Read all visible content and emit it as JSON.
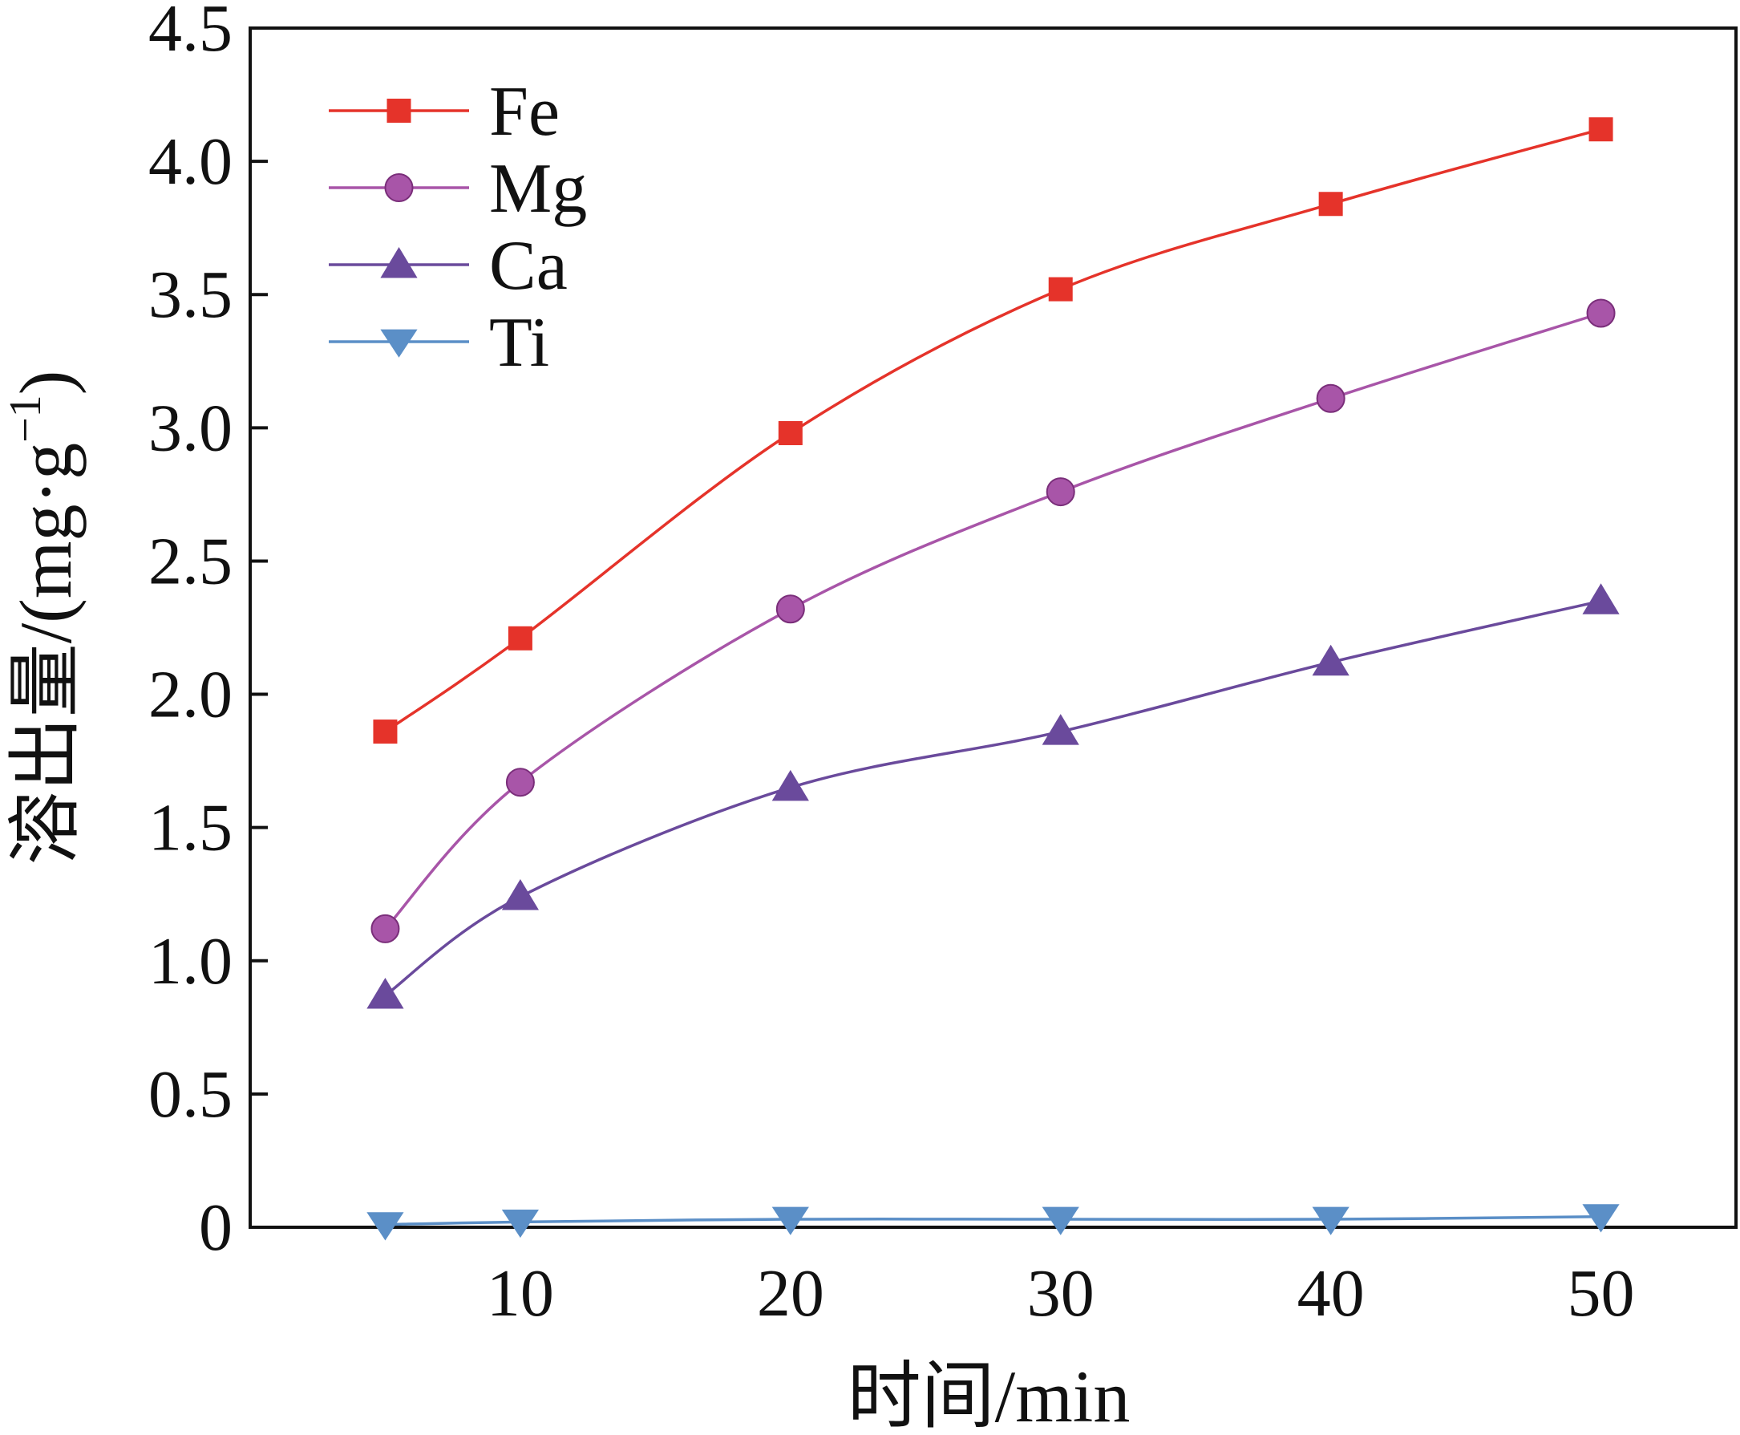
{
  "chart_data": {
    "type": "line",
    "title": "",
    "xlabel": "时间/min",
    "ylabel": "溶出量/(mg·g",
    "ylabel_sup": "−1",
    "ylabel_close": ")",
    "xlim": [
      0,
      55
    ],
    "ylim": [
      0,
      4.5
    ],
    "x_ticks": [
      10,
      20,
      30,
      40,
      50
    ],
    "x_tick_labels": [
      "10",
      "20",
      "30",
      "40",
      "50"
    ],
    "y_ticks": [
      0,
      0.5,
      1.0,
      1.5,
      2.0,
      2.5,
      3.0,
      3.5,
      4.0,
      4.5
    ],
    "y_tick_labels": [
      "0",
      "0.5",
      "1.0",
      "1.5",
      "2.0",
      "2.5",
      "3.0",
      "3.5",
      "4.0",
      "4.5"
    ],
    "grid": false,
    "legend_position": "top-left",
    "x": [
      5,
      10,
      20,
      30,
      40,
      50
    ],
    "series": [
      {
        "name": "Fe",
        "values": [
          1.86,
          2.21,
          2.98,
          3.52,
          3.84,
          4.12
        ],
        "color": "#e5332a",
        "marker": "square"
      },
      {
        "name": "Mg",
        "values": [
          1.12,
          1.67,
          2.32,
          2.76,
          3.11,
          3.43
        ],
        "color": "#a855a8",
        "marker": "circle"
      },
      {
        "name": "Ca",
        "values": [
          0.87,
          1.24,
          1.65,
          1.86,
          2.12,
          2.35
        ],
        "color": "#6a4a9c",
        "marker": "triangle-up"
      },
      {
        "name": "Ti",
        "values": [
          0.01,
          0.02,
          0.03,
          0.03,
          0.03,
          0.04
        ],
        "color": "#5b8fc7",
        "marker": "triangle-down"
      }
    ]
  }
}
